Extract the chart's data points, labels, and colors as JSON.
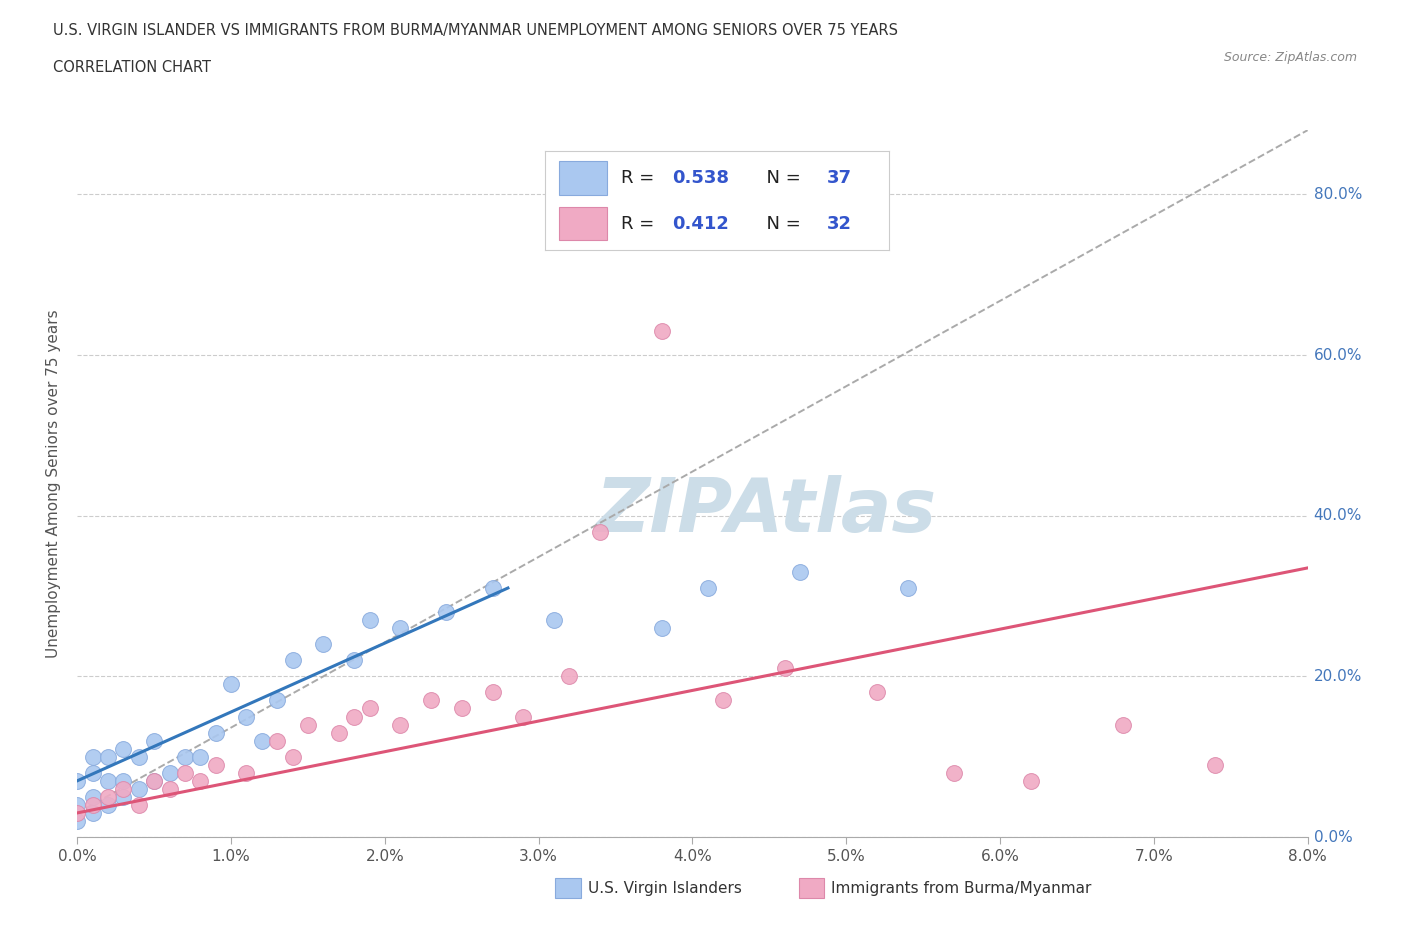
{
  "title_line1": "U.S. VIRGIN ISLANDER VS IMMIGRANTS FROM BURMA/MYANMAR UNEMPLOYMENT AMONG SENIORS OVER 75 YEARS",
  "title_line2": "CORRELATION CHART",
  "source_text": "Source: ZipAtlas.com",
  "xlabel_ticks": [
    "0.0%",
    "1.0%",
    "2.0%",
    "3.0%",
    "4.0%",
    "5.0%",
    "6.0%",
    "7.0%",
    "8.0%"
  ],
  "ylabel_ticks_right": [
    "80.0%",
    "60.0%",
    "40.0%",
    "20.0%",
    "0.0%"
  ],
  "ylabel_label": "Unemployment Among Seniors over 75 years",
  "xmin": 0.0,
  "xmax": 0.08,
  "ymin": 0.0,
  "ymax": 0.88,
  "r_blue": "0.538",
  "n_blue": "37",
  "r_pink": "0.412",
  "n_pink": "32",
  "legend_label1": "U.S. Virgin Islanders",
  "legend_label2": "Immigrants from Burma/Myanmar",
  "blue_color": "#aac8f0",
  "pink_color": "#f0aac4",
  "blue_edge": "#88aadd",
  "pink_edge": "#dd88aa",
  "blue_line_color": "#3377bb",
  "pink_line_color": "#dd5577",
  "dashed_line_color": "#aaaaaa",
  "watermark_color": "#ccdde8",
  "scatter_blue_x": [
    0.0,
    0.0,
    0.0,
    0.001,
    0.001,
    0.001,
    0.001,
    0.002,
    0.002,
    0.002,
    0.003,
    0.003,
    0.003,
    0.004,
    0.004,
    0.005,
    0.005,
    0.006,
    0.007,
    0.008,
    0.009,
    0.01,
    0.011,
    0.012,
    0.013,
    0.014,
    0.016,
    0.018,
    0.019,
    0.021,
    0.024,
    0.027,
    0.031,
    0.038,
    0.041,
    0.047,
    0.054
  ],
  "scatter_blue_y": [
    0.02,
    0.04,
    0.07,
    0.03,
    0.05,
    0.08,
    0.1,
    0.04,
    0.07,
    0.1,
    0.05,
    0.07,
    0.11,
    0.06,
    0.1,
    0.07,
    0.12,
    0.08,
    0.1,
    0.1,
    0.13,
    0.19,
    0.15,
    0.12,
    0.17,
    0.22,
    0.24,
    0.22,
    0.27,
    0.26,
    0.28,
    0.31,
    0.27,
    0.26,
    0.31,
    0.33,
    0.31
  ],
  "scatter_pink_x": [
    0.0,
    0.001,
    0.002,
    0.003,
    0.004,
    0.005,
    0.006,
    0.007,
    0.008,
    0.009,
    0.011,
    0.013,
    0.014,
    0.015,
    0.017,
    0.018,
    0.019,
    0.021,
    0.023,
    0.025,
    0.027,
    0.029,
    0.032,
    0.034,
    0.038,
    0.042,
    0.046,
    0.052,
    0.057,
    0.062,
    0.068,
    0.074
  ],
  "scatter_pink_y": [
    0.03,
    0.04,
    0.05,
    0.06,
    0.04,
    0.07,
    0.06,
    0.08,
    0.07,
    0.09,
    0.08,
    0.12,
    0.1,
    0.14,
    0.13,
    0.15,
    0.16,
    0.14,
    0.17,
    0.16,
    0.18,
    0.15,
    0.2,
    0.38,
    0.63,
    0.17,
    0.21,
    0.18,
    0.08,
    0.07,
    0.14,
    0.09
  ],
  "blue_line_x": [
    0.0,
    0.028
  ],
  "blue_line_y": [
    0.07,
    0.31
  ],
  "pink_line_x": [
    0.0,
    0.08
  ],
  "pink_line_y": [
    0.03,
    0.335
  ],
  "dashed_line_x": [
    0.0,
    0.08
  ],
  "dashed_line_y": [
    0.03,
    0.88
  ]
}
